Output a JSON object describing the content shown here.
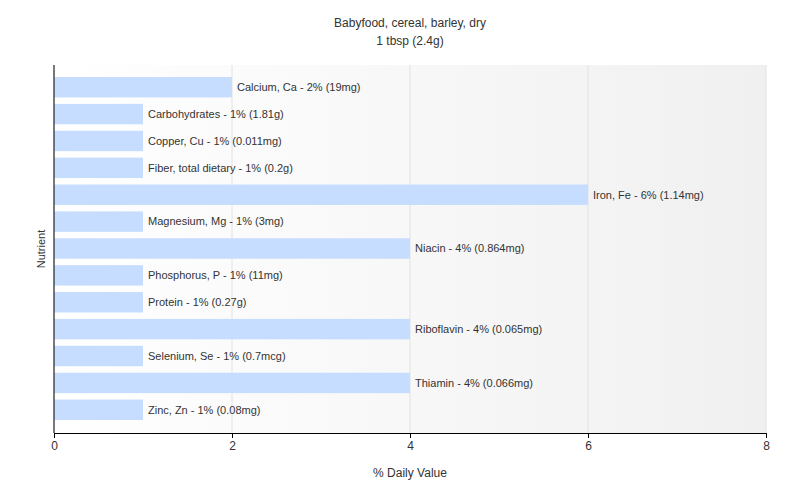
{
  "chart_data": {
    "type": "bar",
    "orientation": "horizontal",
    "title": "Babyfood, cereal, barley, dry",
    "subtitle": "1 tbsp (2.4g)",
    "x_label": "% Daily Value",
    "y_label": "Nutrient",
    "categories": [
      "Calcium, Ca - 2% (19mg)",
      "Carbohydrates - 1% (1.81g)",
      "Copper, Cu - 1% (0.011mg)",
      "Fiber, total dietary - 1% (0.2g)",
      "Iron, Fe - 6% (1.14mg)",
      "Magnesium, Mg - 1% (3mg)",
      "Niacin - 4% (0.864mg)",
      "Phosphorus, P - 1% (11mg)",
      "Protein - 1% (0.27g)",
      "Riboflavin - 4% (0.065mg)",
      "Selenium, Se - 1% (0.7mcg)",
      "Thiamin - 4% (0.066mg)",
      "Zinc, Zn - 1% (0.08mg)"
    ],
    "values": [
      2,
      1,
      1,
      1,
      6,
      1,
      4,
      1,
      1,
      4,
      1,
      4,
      1
    ],
    "color": "#c6ddff",
    "xlim": [
      0,
      8
    ],
    "xticks": [
      0,
      2,
      4,
      6,
      8
    ],
    "grid": true,
    "tick_labels": "x"
  }
}
